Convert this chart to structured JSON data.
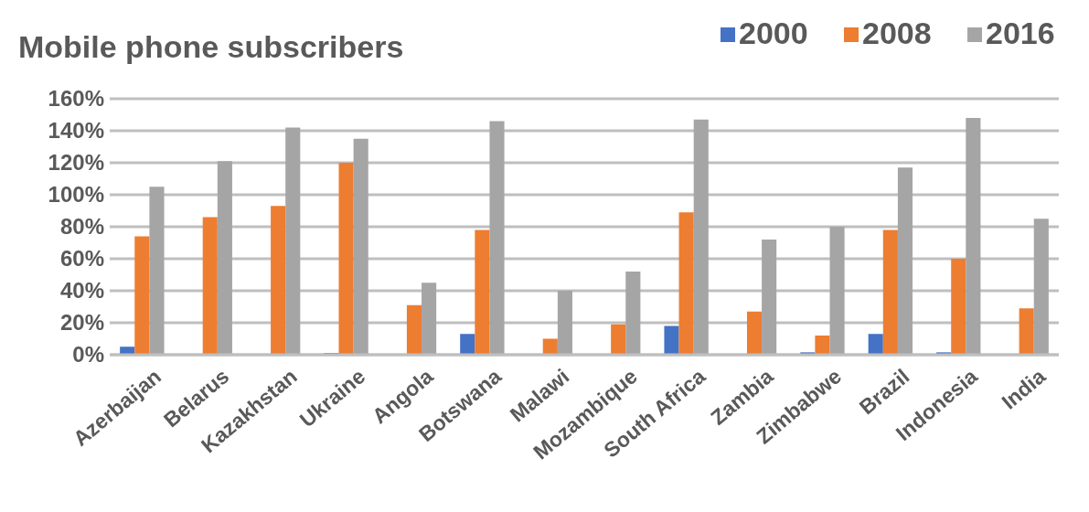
{
  "chart_data": {
    "type": "bar",
    "title": "Mobile phone subscribers",
    "categories": [
      "Azerbaijan",
      "Belarus",
      "Kazakhstan",
      "Ukraine",
      "Angola",
      "Botswana",
      "Malawi",
      "Mozambique",
      "South Africa",
      "Zambia",
      "Zimbabwe",
      "Brazil",
      "Indonesia",
      "India"
    ],
    "series": [
      {
        "name": "2000",
        "color": "#4472c4",
        "values": [
          5,
          0,
          null,
          1,
          0,
          13,
          null,
          null,
          18,
          null,
          1.5,
          13,
          1.5,
          null
        ]
      },
      {
        "name": "2008",
        "color": "#ed7d31",
        "values": [
          74,
          86,
          93,
          120,
          31,
          78,
          10,
          19,
          89,
          27,
          12,
          78,
          60,
          29
        ]
      },
      {
        "name": "2016",
        "color": "#a5a5a5",
        "values": [
          105,
          121,
          142,
          135,
          45,
          146,
          40,
          52,
          147,
          72,
          80,
          117,
          148,
          85
        ]
      }
    ],
    "ylim": [
      0,
      160
    ],
    "yticks": [
      {
        "value": 0,
        "label": "0%"
      },
      {
        "value": 20,
        "label": "20%"
      },
      {
        "value": 40,
        "label": "40%"
      },
      {
        "value": 60,
        "label": "60%"
      },
      {
        "value": 80,
        "label": "80%"
      },
      {
        "value": 100,
        "label": "100%"
      },
      {
        "value": 120,
        "label": "120%"
      },
      {
        "value": 140,
        "label": "140%"
      },
      {
        "value": 160,
        "label": "160%"
      }
    ],
    "grid": "y",
    "legend": "top right"
  }
}
